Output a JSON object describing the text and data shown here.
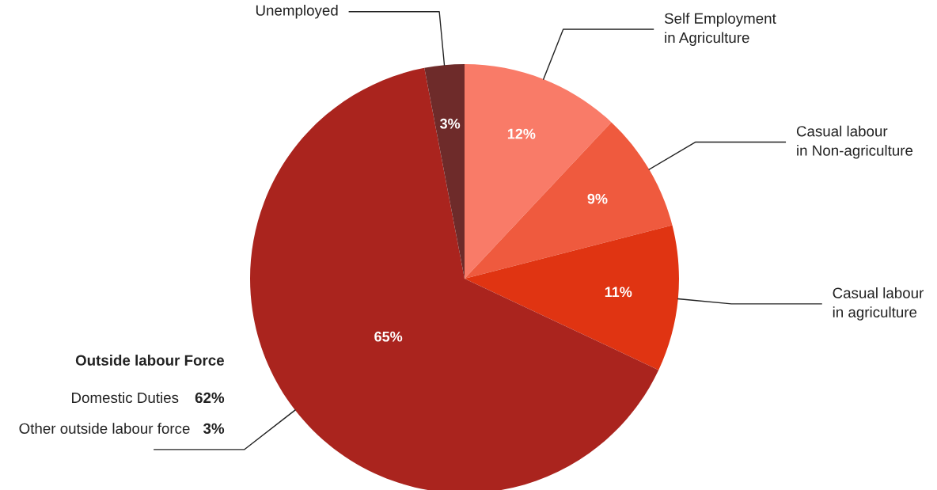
{
  "chart_data": {
    "type": "pie",
    "categories": [
      "Self Employment\nin Agriculture",
      "Casual labour\nin Non-agriculture",
      "Casual labour\nin agriculture",
      "Outside labour Force",
      "Unemployed"
    ],
    "values": [
      12,
      9,
      11,
      65,
      3
    ],
    "value_labels": [
      "12%",
      "9%",
      "11%",
      "65%",
      "3%"
    ],
    "colors": [
      "#f97b68",
      "#ef5a3e",
      "#e03412",
      "#aa241e",
      "#6e2b2a"
    ],
    "annotations": [
      "Domestic Duties 62%",
      "Other outside labour force 3%"
    ],
    "legend": false
  }
}
